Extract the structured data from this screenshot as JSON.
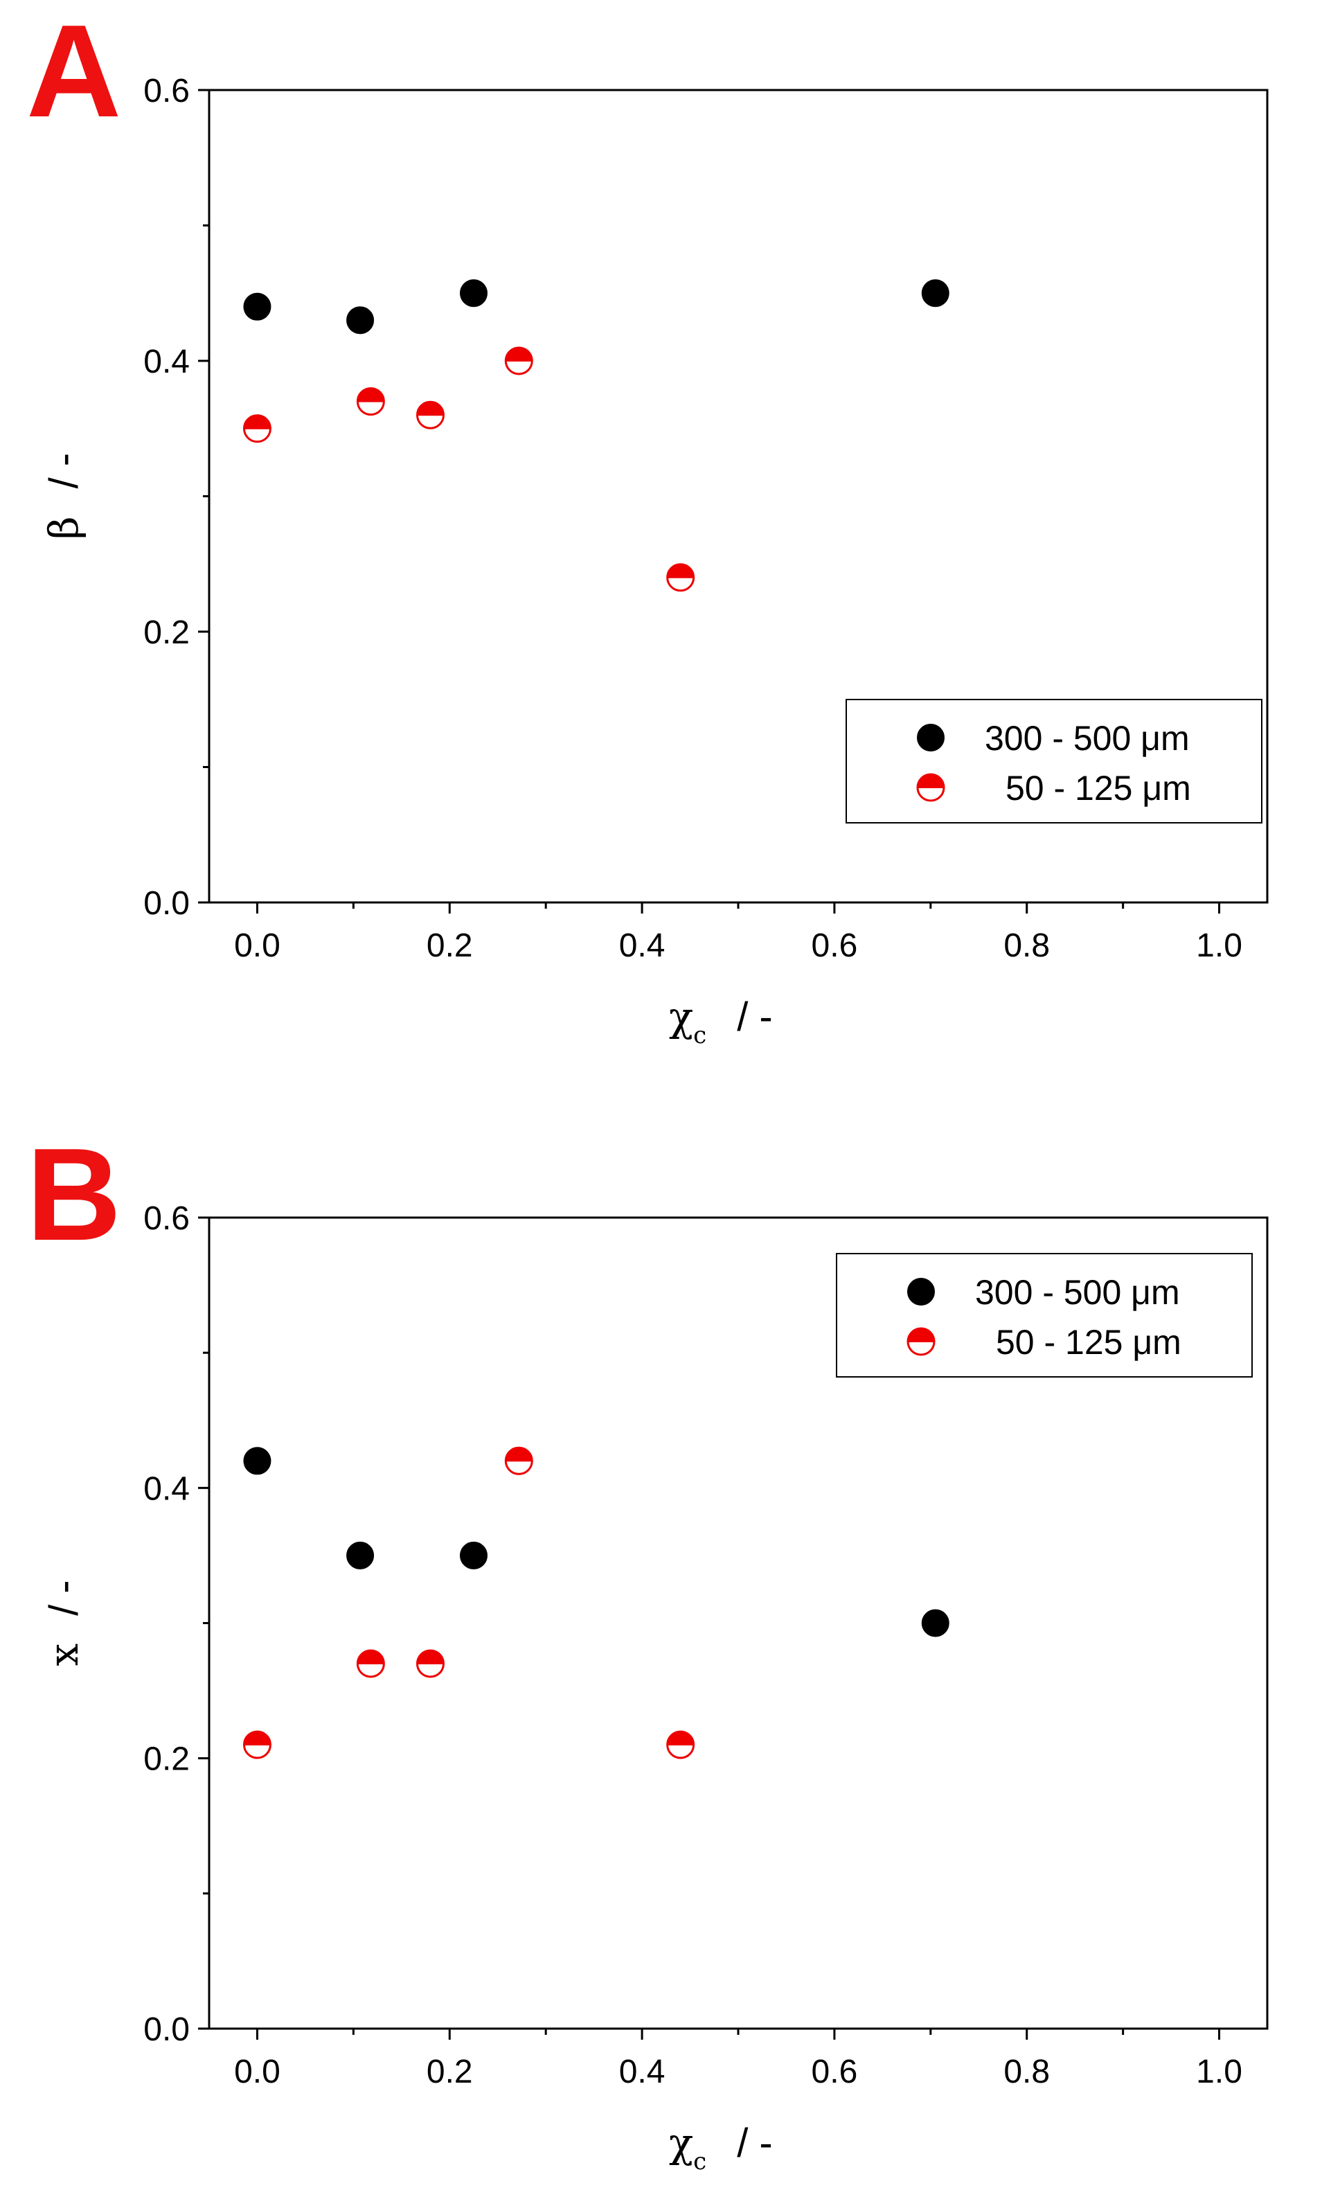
{
  "colors": {
    "series1": "#000000",
    "series2": "#ee0000",
    "panel_label": "#ee1111"
  },
  "chart_data": [
    {
      "panel": "A",
      "type": "scatter",
      "xlabel": {
        "main": "χ",
        "sub": "c",
        "rest": "/   -"
      },
      "ylabel": {
        "main": "β",
        "rest": "/   -"
      },
      "xlim": [
        -0.05,
        1.05
      ],
      "ylim": [
        0.0,
        0.6
      ],
      "xticks": [
        "0.0",
        "0.2",
        "0.4",
        "0.6",
        "0.8",
        "1.0"
      ],
      "yticks": [
        "0.0",
        "0.2",
        "0.4",
        "0.6"
      ],
      "grid": false,
      "legend_position": "bottom-right",
      "series": [
        {
          "name": "300 - 500 μm",
          "marker": "filled-circle",
          "points": [
            [
              0.0,
              0.44
            ],
            [
              0.107,
              0.43
            ],
            [
              0.225,
              0.45
            ],
            [
              0.705,
              0.45
            ]
          ]
        },
        {
          "name": "50 - 125 μm",
          "marker": "half-filled-circle",
          "points": [
            [
              0.0,
              0.35
            ],
            [
              0.118,
              0.37
            ],
            [
              0.18,
              0.36
            ],
            [
              0.272,
              0.4
            ],
            [
              0.44,
              0.24
            ]
          ]
        }
      ]
    },
    {
      "panel": "B",
      "type": "scatter",
      "xlabel": {
        "main": "χ",
        "sub": "c",
        "rest": "/   -"
      },
      "ylabel": {
        "main": "x",
        "rest": "/   -"
      },
      "xlim": [
        -0.05,
        1.05
      ],
      "ylim": [
        0.0,
        0.6
      ],
      "xticks": [
        "0.0",
        "0.2",
        "0.4",
        "0.6",
        "0.8",
        "1.0"
      ],
      "yticks": [
        "0.0",
        "0.2",
        "0.4",
        "0.6"
      ],
      "grid": false,
      "legend_position": "top-right",
      "series": [
        {
          "name": "300 - 500 μm",
          "marker": "filled-circle",
          "points": [
            [
              0.0,
              0.42
            ],
            [
              0.107,
              0.35
            ],
            [
              0.225,
              0.35
            ],
            [
              0.705,
              0.3
            ]
          ]
        },
        {
          "name": "50 - 125 μm",
          "marker": "half-filled-circle",
          "points": [
            [
              0.0,
              0.21
            ],
            [
              0.118,
              0.27
            ],
            [
              0.18,
              0.27
            ],
            [
              0.272,
              0.42
            ],
            [
              0.44,
              0.21
            ]
          ]
        }
      ]
    }
  ]
}
